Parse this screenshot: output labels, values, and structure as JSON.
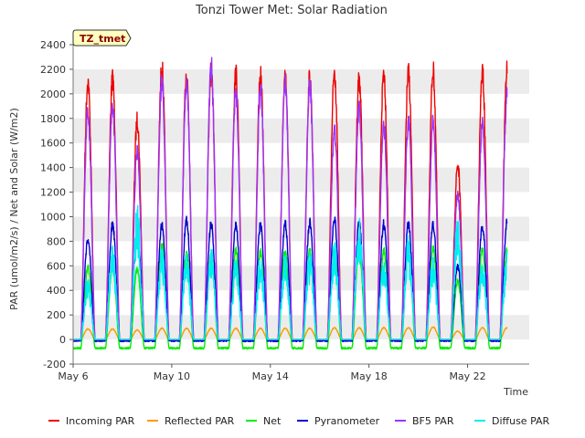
{
  "chart_data": {
    "type": "line",
    "title": "Tonzi Tower Met: Solar Radiation",
    "xlabel": "Time",
    "ylabel": "PAR (umol/m2/s) / Net and Solar (W/m2)",
    "badge": "TZ_tmet",
    "ylim": [
      -200,
      2400
    ],
    "yticks": [
      -200,
      0,
      200,
      400,
      600,
      800,
      1000,
      1200,
      1400,
      1600,
      1800,
      2000,
      2200,
      2400
    ],
    "xlim": [
      0,
      18.5
    ],
    "xticks": [
      {
        "value": 0,
        "label": "May 6"
      },
      {
        "value": 4,
        "label": "May 10"
      },
      {
        "value": 8,
        "label": "May 14"
      },
      {
        "value": 12,
        "label": "May 18"
      },
      {
        "value": 16,
        "label": "May 22"
      }
    ],
    "grid": "horizontal bands",
    "legend_position": "bottom",
    "day_centers": [
      0.6,
      1.6,
      2.6,
      3.6,
      4.6,
      5.6,
      6.6,
      7.6,
      8.6,
      9.6,
      10.6,
      11.6,
      12.6,
      13.6,
      14.6,
      15.6,
      16.6,
      17.6
    ],
    "series": [
      {
        "name": "Incoming PAR",
        "color": "#ee0000",
        "night": 0,
        "daily_peak": [
          2190,
          2210,
          1860,
          2310,
          2260,
          2270,
          2250,
          2230,
          2240,
          2230,
          2270,
          2220,
          2270,
          2260,
          2280,
          1480,
          2260,
          2290
        ]
      },
      {
        "name": "Reflected PAR",
        "color": "#ff9900",
        "night": 0,
        "daily_peak": [
          90,
          90,
          80,
          95,
          95,
          95,
          95,
          95,
          95,
          95,
          100,
          100,
          100,
          100,
          105,
          70,
          100,
          100
        ]
      },
      {
        "name": "Net",
        "color": "#00ee00",
        "night": -70,
        "daily_peak": [
          620,
          620,
          600,
          800,
          740,
          720,
          760,
          740,
          750,
          750,
          750,
          760,
          760,
          770,
          780,
          500,
          760,
          760
        ]
      },
      {
        "name": "Pyranometer",
        "color": "#0000cc",
        "night": -10,
        "daily_peak": [
          840,
          980,
          920,
          980,
          1010,
          980,
          970,
          970,
          980,
          990,
          1020,
          980,
          980,
          980,
          980,
          620,
          960,
          990
        ]
      },
      {
        "name": "BF5 PAR",
        "color": "#9933ff",
        "night": 0,
        "daily_peak": [
          1930,
          1970,
          1600,
          2190,
          2190,
          2330,
          2100,
          2120,
          2170,
          2150,
          1770,
          1960,
          1810,
          1840,
          1840,
          1230,
          1840,
          2080
        ]
      },
      {
        "name": "Diffuse PAR",
        "color": "#00eeee",
        "night": 0,
        "daily_peak": [
          530,
          820,
          1130,
          790,
          760,
          810,
          710,
          760,
          740,
          780,
          850,
          1050,
          700,
          890,
          720,
          1070,
          720,
          760
        ]
      }
    ]
  }
}
